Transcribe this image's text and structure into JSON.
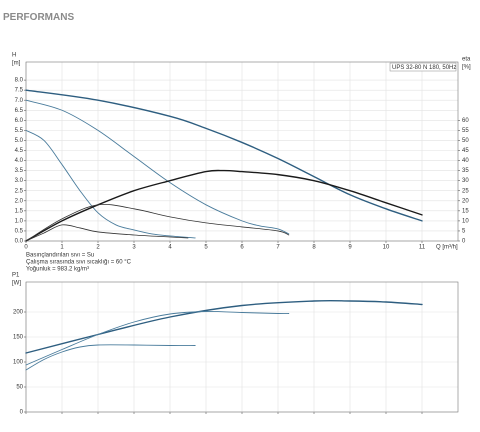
{
  "title": "PERFORMANS",
  "chart_data": [
    {
      "type": "line",
      "ylabel": "H",
      "yunit": "[m]",
      "y2label": "eta",
      "y2unit": "[%]",
      "xlabel": "Q [m³/h]",
      "model": "UPS 32-80 N 180, 50Hz",
      "notes": [
        "Basınçlandırılan sıvı = Su",
        "Çalışma sırasında sıvı sıcaklığı = 60 °C",
        "Yoğunluk = 983.2 kg/m³"
      ],
      "xlim": [
        0,
        12
      ],
      "xticks": [
        0,
        1,
        2,
        3,
        4,
        5,
        6,
        7,
        8,
        9,
        10,
        11
      ],
      "ylim": [
        0,
        8.9
      ],
      "yticks": [
        {
          "value": 0,
          "label": "0.0"
        },
        0.5,
        {
          "value": 1,
          "label": "1.0"
        },
        1.5,
        {
          "value": 2,
          "label": "2.0"
        },
        2.5,
        {
          "value": 3,
          "label": "3.0"
        },
        3.5,
        {
          "value": 4,
          "label": "4.0"
        },
        4.5,
        {
          "value": 5,
          "label": "5.0"
        },
        5.5,
        {
          "value": 6,
          "label": "6.0"
        },
        6.5,
        {
          "value": 7,
          "label": "7.0"
        },
        7.5,
        {
          "value": 8,
          "label": "8.0"
        }
      ],
      "y2lim": [
        0,
        89
      ],
      "y2ticks": [
        0,
        5,
        10,
        15,
        20,
        25,
        30,
        35,
        40,
        45,
        50,
        55,
        60
      ],
      "grid": true,
      "x_tick_labels": true,
      "series": [
        {
          "color": "#2e5e80",
          "width": 1.4,
          "x": [
            0,
            2,
            4,
            5,
            6,
            7,
            8,
            9,
            10,
            11
          ],
          "values": [
            7.5,
            7.0,
            6.2,
            5.6,
            4.9,
            4.1,
            3.2,
            2.3,
            1.6,
            1.0
          ]
        },
        {
          "color": "#4a7c9c",
          "width": 0.9,
          "x": [
            0,
            1,
            2,
            3,
            4,
            5,
            6,
            6.5,
            7,
            7.3
          ],
          "values": [
            7.0,
            6.5,
            5.5,
            4.2,
            2.9,
            1.8,
            1.0,
            0.75,
            0.6,
            0.35
          ]
        },
        {
          "color": "#4a7c9c",
          "width": 0.9,
          "x": [
            0,
            0.5,
            1,
            1.5,
            2,
            2.5,
            3,
            3.5,
            4,
            4.7
          ],
          "values": [
            5.5,
            5.0,
            3.8,
            2.5,
            1.4,
            0.8,
            0.55,
            0.35,
            0.25,
            0.15
          ]
        },
        {
          "color": "#1a1a1a",
          "width": 1.4,
          "axis": "y2",
          "x": [
            0,
            1,
            2,
            3,
            4,
            5,
            5.5,
            6,
            7,
            8,
            9,
            10,
            11
          ],
          "values": [
            0,
            10,
            18,
            25,
            30,
            34.5,
            35,
            34.5,
            33,
            30,
            25,
            19,
            13
          ]
        },
        {
          "color": "#333333",
          "width": 0.8,
          "axis": "y2",
          "x": [
            0,
            1,
            2,
            3,
            4,
            5,
            6,
            7,
            7.3
          ],
          "values": [
            0,
            11,
            18,
            16,
            12,
            9,
            7,
            5,
            3
          ]
        },
        {
          "color": "#333333",
          "width": 0.8,
          "axis": "y2",
          "x": [
            0,
            0.5,
            1,
            1.5,
            2,
            3,
            4,
            4.5
          ],
          "values": [
            0,
            4,
            8,
            6.5,
            4.5,
            3,
            2,
            1.5
          ]
        }
      ]
    },
    {
      "type": "line",
      "ylabel": "P1",
      "yunit": "[W]",
      "xlim": [
        0,
        12
      ],
      "xticks": [
        0,
        1,
        2,
        3,
        4,
        5,
        6,
        7,
        8,
        9,
        10,
        11
      ],
      "ylim": [
        0,
        260
      ],
      "yticks": [
        0,
        50,
        100,
        150,
        200
      ],
      "grid": true,
      "x_tick_labels": false,
      "series": [
        {
          "color": "#2e5e80",
          "width": 1.4,
          "x": [
            0,
            2,
            4,
            6,
            8,
            9,
            10,
            11
          ],
          "values": [
            118,
            155,
            190,
            213,
            222,
            222,
            220,
            215
          ]
        },
        {
          "color": "#4a7c9c",
          "width": 0.9,
          "x": [
            0,
            1,
            2,
            3,
            4,
            5,
            6,
            7,
            7.3
          ],
          "values": [
            94,
            125,
            155,
            180,
            196,
            201,
            199,
            197,
            197
          ]
        },
        {
          "color": "#4a7c9c",
          "width": 0.9,
          "x": [
            0,
            0.5,
            1,
            1.5,
            2,
            3,
            4,
            4.7
          ],
          "values": [
            84,
            105,
            120,
            130,
            134,
            134,
            133,
            133
          ]
        }
      ]
    }
  ]
}
